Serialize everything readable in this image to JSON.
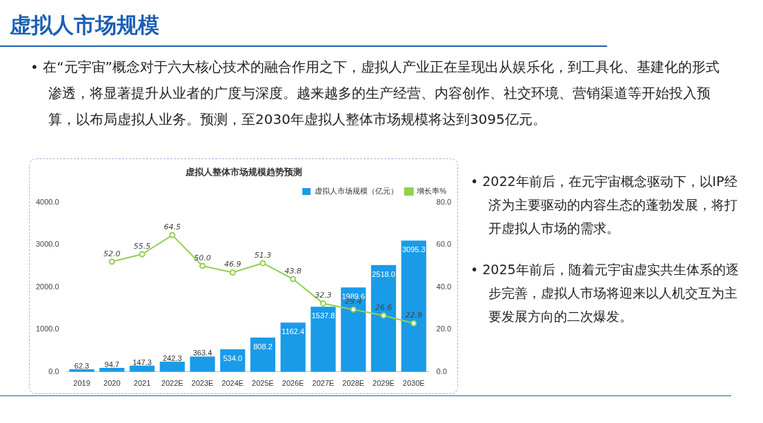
{
  "chart_data": [
    {
      "type": "other",
      "title": "虚拟人市场规模",
      "annotations": [
        "• 在“元宇宙”概念对于六大核心技术的融合作用之下，虚拟人产业正在呈现出从娱乐化，到工具化、基建化的形式渗透，将显著提升从业者的广度与深度。越来越多的生产经营、内容创作、社交环境、营销渠道等开始投入预算，以布局虚拟人业务。预测，至2030年虚拟人整体市场规模将达到3095亿元。"
      ]
    },
    {
      "type": "bar",
      "title": "虚拟人整体市场规模趋势预测",
      "categories": [
        "2019",
        "2020",
        "2021",
        "2022E",
        "2023E",
        "2024E",
        "2025E",
        "2026E",
        "2027E",
        "2028E",
        "2029E",
        "2030E"
      ],
      "series": [
        {
          "name": "虚拟人市场规模（亿元）",
          "type": "bar",
          "color": "#1a9be8",
          "values": [
            62.3,
            94.7,
            147.3,
            242.3,
            363.4,
            534.0,
            808.2,
            1162.4,
            1537.8,
            1989.6,
            2518.0,
            3095.3
          ],
          "value_labels": [
            "62.3",
            "94.7",
            "147.3",
            "242.3",
            "363.4",
            "534.0",
            "808.2",
            "1162.4",
            "1537.8",
            "1989.6",
            "2518.0",
            "3095.3"
          ]
        },
        {
          "name": "增长率%",
          "type": "line",
          "axis": "y2",
          "color": "#92d050",
          "values": [
            null,
            52.0,
            55.5,
            64.5,
            50.0,
            46.9,
            51.3,
            43.8,
            32.3,
            29.4,
            26.6,
            22.9
          ],
          "value_labels": [
            null,
            "52.0",
            "55.5",
            "64.5",
            "50.0",
            "46.9",
            "51.3",
            "43.8",
            "32.3",
            "29.4",
            "26.6",
            "22.9"
          ]
        }
      ],
      "ylim": [
        0,
        4000
      ],
      "yticks": [
        {
          "value": 0,
          "label": "0.0"
        },
        {
          "value": 1000,
          "label": "1000.0"
        },
        {
          "value": 2000,
          "label": "2000.0"
        },
        {
          "value": 3000,
          "label": "3000.0"
        },
        {
          "value": 4000,
          "label": "4000.0"
        }
      ],
      "y2lim": [
        0,
        80
      ],
      "y2ticks": [
        {
          "value": 0,
          "label": "0.0"
        },
        {
          "value": 20,
          "label": "20.0"
        },
        {
          "value": 40,
          "label": "40.0"
        },
        {
          "value": 60,
          "label": "60.0"
        },
        {
          "value": 80,
          "label": "80.0"
        }
      ],
      "legend": "top right",
      "marker": "circle"
    },
    {
      "type": "other",
      "annotations": [
        "• 2022年前后，在元宇宙概念驱动下，以IP经济为主要驱动的内容生态的蓬勃发展，将打开虚拟人市场的需求。",
        "• 2025年前后，随着元宇宙虚实共生体系的逐步完善，虚拟人市场将迎来以人机交互为主要发展方向的二次爆发。"
      ]
    }
  ]
}
